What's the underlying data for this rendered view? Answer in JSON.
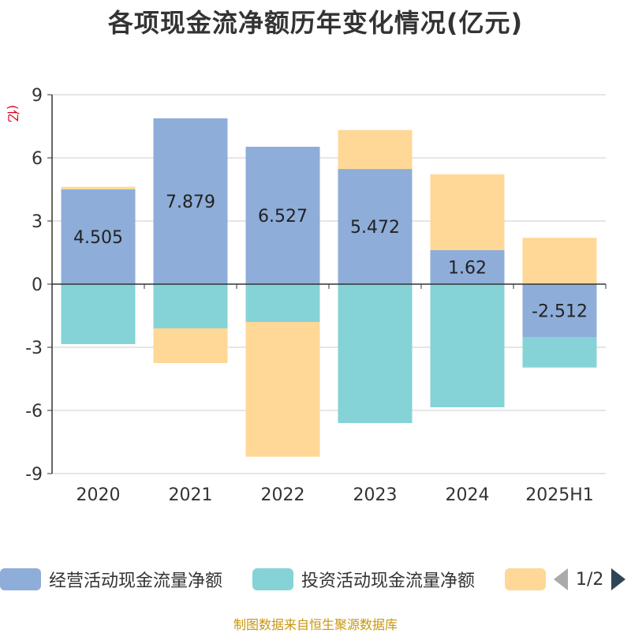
{
  "title": "各项现金流净额历年变化情况(亿元)",
  "unit": "(亿元)",
  "source": "制图数据来自恒生聚源数据库",
  "legend": {
    "items": [
      {
        "label": "经营活动现金流量净额",
        "color": "#8eadd9"
      },
      {
        "label": "投资活动现金流量净额",
        "color": "#85d3d6"
      },
      {
        "label": "",
        "color": "#ffd897"
      }
    ],
    "page": "1/2"
  },
  "chart_data": {
    "type": "bar",
    "stacked": true,
    "categories": [
      "2020",
      "2021",
      "2022",
      "2023",
      "2024",
      "2025H1"
    ],
    "ylim": [
      -9,
      9
    ],
    "yticks": [
      -9,
      -6,
      -3,
      0,
      3,
      6,
      9
    ],
    "grid": true,
    "series": [
      {
        "name": "经营活动现金流量净额",
        "color": "#8eadd9",
        "values": [
          4.505,
          7.879,
          6.527,
          5.472,
          1.62,
          -2.512
        ],
        "labels": [
          "4.505",
          "7.879",
          "6.527",
          "5.472",
          "1.62",
          "-2.512"
        ]
      },
      {
        "name": "投资活动现金流量净额",
        "color": "#85d3d6",
        "values": [
          -2.85,
          -2.1,
          -1.8,
          -6.6,
          -5.85,
          -1.45
        ]
      },
      {
        "color": "#ffd897",
        "values": [
          0.12,
          -1.65,
          -6.4,
          1.85,
          3.6,
          2.2
        ]
      }
    ]
  }
}
